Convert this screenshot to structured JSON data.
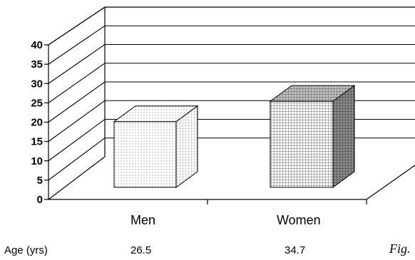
{
  "chart_data": {
    "type": "bar",
    "categories": [
      "Men",
      "Women"
    ],
    "values": [
      26.5,
      34.7
    ],
    "title": "",
    "xlabel": "",
    "ylabel": "",
    "ylim": [
      0,
      40
    ],
    "yticks": [
      0,
      5,
      10,
      15,
      20,
      25,
      30,
      35,
      40
    ],
    "grid": true,
    "style": "3d-bar"
  },
  "table": {
    "row_label": "Age (yrs)",
    "cells": [
      "26.5",
      "34.7"
    ]
  },
  "figure_label": "Fig."
}
